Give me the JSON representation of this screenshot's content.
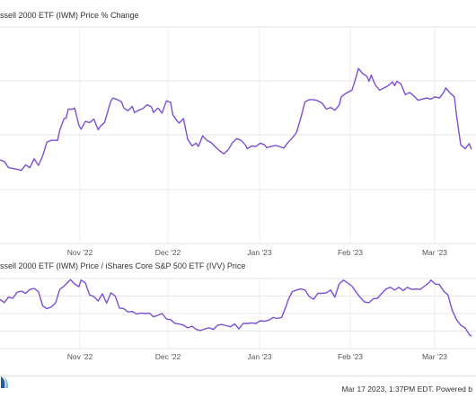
{
  "chart_data": [
    {
      "type": "line",
      "title": "ssell 2000 ETF (IWM) Price % Change",
      "x_ticks": [
        "Nov '22",
        "Dec '22",
        "Jan '23",
        "Feb '23",
        "Mar '23"
      ],
      "ylim": [
        -10,
        14
      ],
      "grid": true,
      "color": "#7b4fd6",
      "series": [
        {
          "values": [
            [
              0,
              -4.5
            ],
            [
              2,
              -4.8
            ],
            [
              4,
              -5.9
            ],
            [
              8,
              -6.2
            ],
            [
              10,
              -6.4
            ],
            [
              12,
              -5.4
            ],
            [
              14,
              -5.9
            ],
            [
              16,
              -4.3
            ],
            [
              18,
              -5.5
            ],
            [
              20,
              -3.8
            ],
            [
              22,
              -1.3
            ],
            [
              24,
              -1.0
            ],
            [
              27,
              -1.0
            ],
            [
              28,
              0.8
            ],
            [
              30,
              2.9
            ],
            [
              31,
              3.0
            ],
            [
              32,
              4.6
            ],
            [
              34,
              4.6
            ],
            [
              35,
              4.8
            ],
            [
              37,
              1.7
            ],
            [
              38,
              1.0
            ],
            [
              40,
              2.4
            ],
            [
              42,
              2.2
            ],
            [
              44,
              2.8
            ],
            [
              46,
              0.9
            ],
            [
              47,
              1.5
            ],
            [
              49,
              2.2
            ],
            [
              52,
              6.1
            ],
            [
              53,
              6.6
            ],
            [
              55,
              6.3
            ],
            [
              57,
              5.9
            ],
            [
              58,
              4.8
            ],
            [
              60,
              4.3
            ],
            [
              62,
              5.1
            ],
            [
              63,
              4.0
            ],
            [
              65,
              4.4
            ],
            [
              67,
              4.7
            ],
            [
              69,
              5.4
            ],
            [
              71,
              5.0
            ],
            [
              72,
              4.0
            ],
            [
              74,
              4.8
            ],
            [
              76,
              3.9
            ],
            [
              78,
              6.1
            ],
            [
              80,
              5.8
            ],
            [
              81,
              3.6
            ],
            [
              83,
              2.5
            ],
            [
              84,
              2.1
            ],
            [
              86,
              2.9
            ],
            [
              88,
              -0.8
            ],
            [
              90,
              -2.0
            ],
            [
              92,
              -1.5
            ],
            [
              93,
              -2.1
            ],
            [
              95,
              -0.2
            ],
            [
              97,
              -1.0
            ],
            [
              99,
              -1.4
            ],
            [
              101,
              -2.2
            ],
            [
              103,
              -2.9
            ],
            [
              105,
              -3.4
            ],
            [
              107,
              -2.7
            ],
            [
              109,
              -1.4
            ],
            [
              111,
              -0.7
            ],
            [
              113,
              -1.0
            ],
            [
              115,
              -1.8
            ],
            [
              116,
              -2.5
            ],
            [
              118,
              -2.0
            ],
            [
              120,
              -2.1
            ],
            [
              122,
              -1.5
            ],
            [
              124,
              -1.8
            ],
            [
              125,
              -2.3
            ],
            [
              129,
              -1.9
            ],
            [
              131,
              -2.1
            ],
            [
              133,
              -2.4
            ],
            [
              135,
              -1.4
            ],
            [
              137,
              -0.6
            ],
            [
              139,
              0.4
            ],
            [
              141,
              3.0
            ],
            [
              143,
              5.9
            ],
            [
              145,
              6.3
            ],
            [
              147,
              6.3
            ],
            [
              149,
              6.1
            ],
            [
              151,
              5.7
            ],
            [
              153,
              4.6
            ],
            [
              155,
              4.9
            ],
            [
              157,
              4.4
            ],
            [
              159,
              5.3
            ],
            [
              160,
              6.8
            ],
            [
              162,
              7.4
            ],
            [
              165,
              8.0
            ],
            [
              167,
              10.4
            ],
            [
              168,
              11.9
            ],
            [
              170,
              11.0
            ],
            [
              172,
              10.5
            ],
            [
              173,
              9.6
            ],
            [
              174,
              10.7
            ],
            [
              176,
              8.9
            ],
            [
              178,
              8.0
            ],
            [
              180,
              8.4
            ],
            [
              182,
              8.8
            ],
            [
              184,
              9.5
            ],
            [
              185,
              8.8
            ],
            [
              186,
              9.6
            ],
            [
              188,
              9.1
            ],
            [
              190,
              7.2
            ],
            [
              192,
              7.6
            ],
            [
              194,
              7.0
            ],
            [
              196,
              6.2
            ],
            [
              198,
              6.4
            ],
            [
              200,
              6.6
            ],
            [
              202,
              6.4
            ],
            [
              204,
              6.8
            ],
            [
              206,
              6.6
            ],
            [
              208,
              7.6
            ],
            [
              209,
              8.4
            ],
            [
              211,
              7.5
            ],
            [
              213,
              6.8
            ],
            [
              214,
              3.5
            ],
            [
              216,
              -1.8
            ],
            [
              218,
              -2.5
            ],
            [
              220,
              -1.6
            ],
            [
              221,
              -2.6
            ]
          ]
        }
      ]
    },
    {
      "type": "line",
      "title": "ssell 2000 ETF (IWM) Price / iShares Core S&P 500 ETF (IVV) Price",
      "x_ticks": [
        "Nov '22",
        "Dec '22",
        "Jan '23",
        "Feb '23",
        "Mar '23"
      ],
      "grid": true,
      "color": "#7b4fd6",
      "series": [
        {
          "values": [
            [
              0,
              0.62
            ],
            [
              2,
              0.56
            ],
            [
              4,
              0.66
            ],
            [
              6,
              0.64
            ],
            [
              8,
              0.75
            ],
            [
              10,
              0.77
            ],
            [
              12,
              0.73
            ],
            [
              14,
              0.8
            ],
            [
              16,
              0.82
            ],
            [
              18,
              0.76
            ],
            [
              20,
              0.5
            ],
            [
              22,
              0.45
            ],
            [
              24,
              0.48
            ],
            [
              26,
              0.55
            ],
            [
              28,
              0.8
            ],
            [
              30,
              0.86
            ],
            [
              33,
              0.98
            ],
            [
              35,
              0.9
            ],
            [
              37,
              0.85
            ],
            [
              38,
              0.97
            ],
            [
              40,
              0.92
            ],
            [
              42,
              0.7
            ],
            [
              44,
              0.67
            ],
            [
              46,
              0.59
            ],
            [
              48,
              0.72
            ],
            [
              50,
              0.55
            ],
            [
              52,
              0.74
            ],
            [
              54,
              0.68
            ],
            [
              56,
              0.46
            ],
            [
              58,
              0.45
            ],
            [
              60,
              0.39
            ],
            [
              62,
              0.4
            ],
            [
              64,
              0.35
            ],
            [
              66,
              0.37
            ],
            [
              68,
              0.36
            ],
            [
              70,
              0.37
            ],
            [
              72,
              0.3
            ],
            [
              74,
              0.33
            ],
            [
              76,
              0.36
            ],
            [
              78,
              0.26
            ],
            [
              80,
              0.25
            ],
            [
              82,
              0.18
            ],
            [
              84,
              0.17
            ],
            [
              86,
              0.15
            ],
            [
              88,
              0.1
            ],
            [
              90,
              0.13
            ],
            [
              92,
              0.07
            ],
            [
              94,
              0.05
            ],
            [
              96,
              0.08
            ],
            [
              98,
              0.1
            ],
            [
              100,
              0.07
            ],
            [
              102,
              0.15
            ],
            [
              104,
              0.16
            ],
            [
              106,
              0.14
            ],
            [
              108,
              0.12
            ],
            [
              110,
              0.17
            ],
            [
              112,
              0.08
            ],
            [
              114,
              0.18
            ],
            [
              116,
              0.18
            ],
            [
              118,
              0.19
            ],
            [
              120,
              0.18
            ],
            [
              122,
              0.23
            ],
            [
              124,
              0.22
            ],
            [
              126,
              0.24
            ],
            [
              128,
              0.29
            ],
            [
              130,
              0.27
            ],
            [
              132,
              0.29
            ],
            [
              134,
              0.48
            ],
            [
              135,
              0.6
            ],
            [
              137,
              0.76
            ],
            [
              139,
              0.79
            ],
            [
              141,
              0.81
            ],
            [
              143,
              0.79
            ],
            [
              145,
              0.67
            ],
            [
              147,
              0.62
            ],
            [
              149,
              0.73
            ],
            [
              151,
              0.73
            ],
            [
              153,
              0.74
            ],
            [
              155,
              0.79
            ],
            [
              157,
              0.66
            ],
            [
              159,
              0.9
            ],
            [
              161,
              0.97
            ],
            [
              163,
              0.92
            ],
            [
              165,
              0.86
            ],
            [
              167,
              0.75
            ],
            [
              169,
              0.65
            ],
            [
              171,
              0.57
            ],
            [
              173,
              0.56
            ],
            [
              175,
              0.63
            ],
            [
              177,
              0.64
            ],
            [
              179,
              0.73
            ],
            [
              181,
              0.81
            ],
            [
              183,
              0.84
            ],
            [
              185,
              0.79
            ],
            [
              187,
              0.84
            ],
            [
              189,
              0.78
            ],
            [
              191,
              0.84
            ],
            [
              193,
              0.8
            ],
            [
              195,
              0.81
            ],
            [
              197,
              0.8
            ],
            [
              199,
              0.86
            ],
            [
              201,
              0.92
            ],
            [
              202,
              0.97
            ],
            [
              204,
              0.9
            ],
            [
              206,
              0.89
            ],
            [
              208,
              0.77
            ],
            [
              210,
              0.7
            ],
            [
              212,
              0.42
            ],
            [
              214,
              0.25
            ],
            [
              216,
              0.15
            ],
            [
              218,
              0.1
            ],
            [
              220,
              -0.02
            ],
            [
              221,
              -0.05
            ]
          ]
        }
      ]
    }
  ],
  "footer": {
    "timestamp": "Mar 17 2023, 1:37PM EDT.  Powered b"
  }
}
